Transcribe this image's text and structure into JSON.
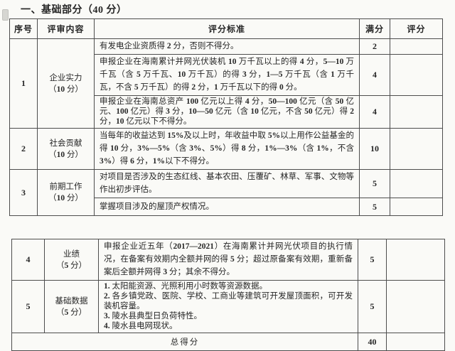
{
  "document": {
    "section_title": "一、基础部分（40 分）",
    "table_headers": {
      "no": "序号",
      "content": "评审内容",
      "criteria": "评分标准",
      "max": "满分",
      "score": "评分"
    },
    "rows": [
      {
        "no": "1",
        "label": "企业实力",
        "points": "（10 分）",
        "criteria": [
          {
            "text": "有发电企业资质得 2 分，否则不得分。",
            "max": "2",
            "score": ""
          },
          {
            "text": "申报企业在海南累计并网光伏装机 10 万千瓦以上的得 4 分，5—10 万千瓦（含 5 万千瓦、10 万千瓦）的得 3 分，1—5 万千瓦（含 1 万千瓦，不含 5 万千瓦）的得 2 分，1 万千瓦以下的得 0 分。",
            "max": "4",
            "score": ""
          },
          {
            "text": "申报企业在海南总资产 100 亿元以上得 4 分，50—100 亿元（含 50 亿元、100 亿元）得 3 分，10—50 亿元（含 10 亿元，不含 50 亿元）得 2 分，10 亿元以下不得分。",
            "max": "4",
            "score": ""
          }
        ]
      },
      {
        "no": "2",
        "label": "社会贡献",
        "points": "（10 分）",
        "criteria": [
          {
            "text": "当每年的收益达到 15%及以上时，年收益中取 5%以上用作公益基金的得 10 分，3%—5%（含 3%、5%）得 8 分，1%—3%（含 1%，不含 3%）得 6 分，1%以下不得分。",
            "max": "10",
            "score": ""
          }
        ]
      },
      {
        "no": "3",
        "label": "前期工作",
        "points": "（10 分）",
        "criteria": [
          {
            "text": "对项目是否涉及的生态红线、基本农田、压覆矿、林草、军事、文物等作出初步评估。",
            "max": "5",
            "score": ""
          },
          {
            "text": "掌握项目涉及的屋顶产权情况。",
            "max": "5",
            "score": ""
          }
        ]
      },
      {
        "no": "4",
        "label": "业绩",
        "points": "（5 分）",
        "criteria": [
          {
            "text": "申报企业近五年（2017—2021）在海南累计并网光伏项目的执行情况，在备案有效期内全额并网的得 5 分；超过原备案有效期，重新备案后全额并网得 3 分；其余不得分。",
            "max": "5",
            "score": ""
          }
        ]
      },
      {
        "no": "5",
        "label": "基础数据",
        "points": "（5 分）",
        "criteria": [
          {
            "text": "1. 太阳能资源、光照利用小时数等资源数据。\n2. 各乡镇党政、医院、学校、工商业等建筑可开发屋顶面积，可开发装机容量。\n3. 陵水县典型日负荷特性。\n4. 陵水县电网现状。",
            "max": "5",
            "score": ""
          }
        ]
      }
    ],
    "total": {
      "label": "总得分",
      "max": "40",
      "score": ""
    }
  },
  "colors": {
    "border": "#4d4d4d",
    "text": "#262626",
    "background": "#fafaf7"
  }
}
